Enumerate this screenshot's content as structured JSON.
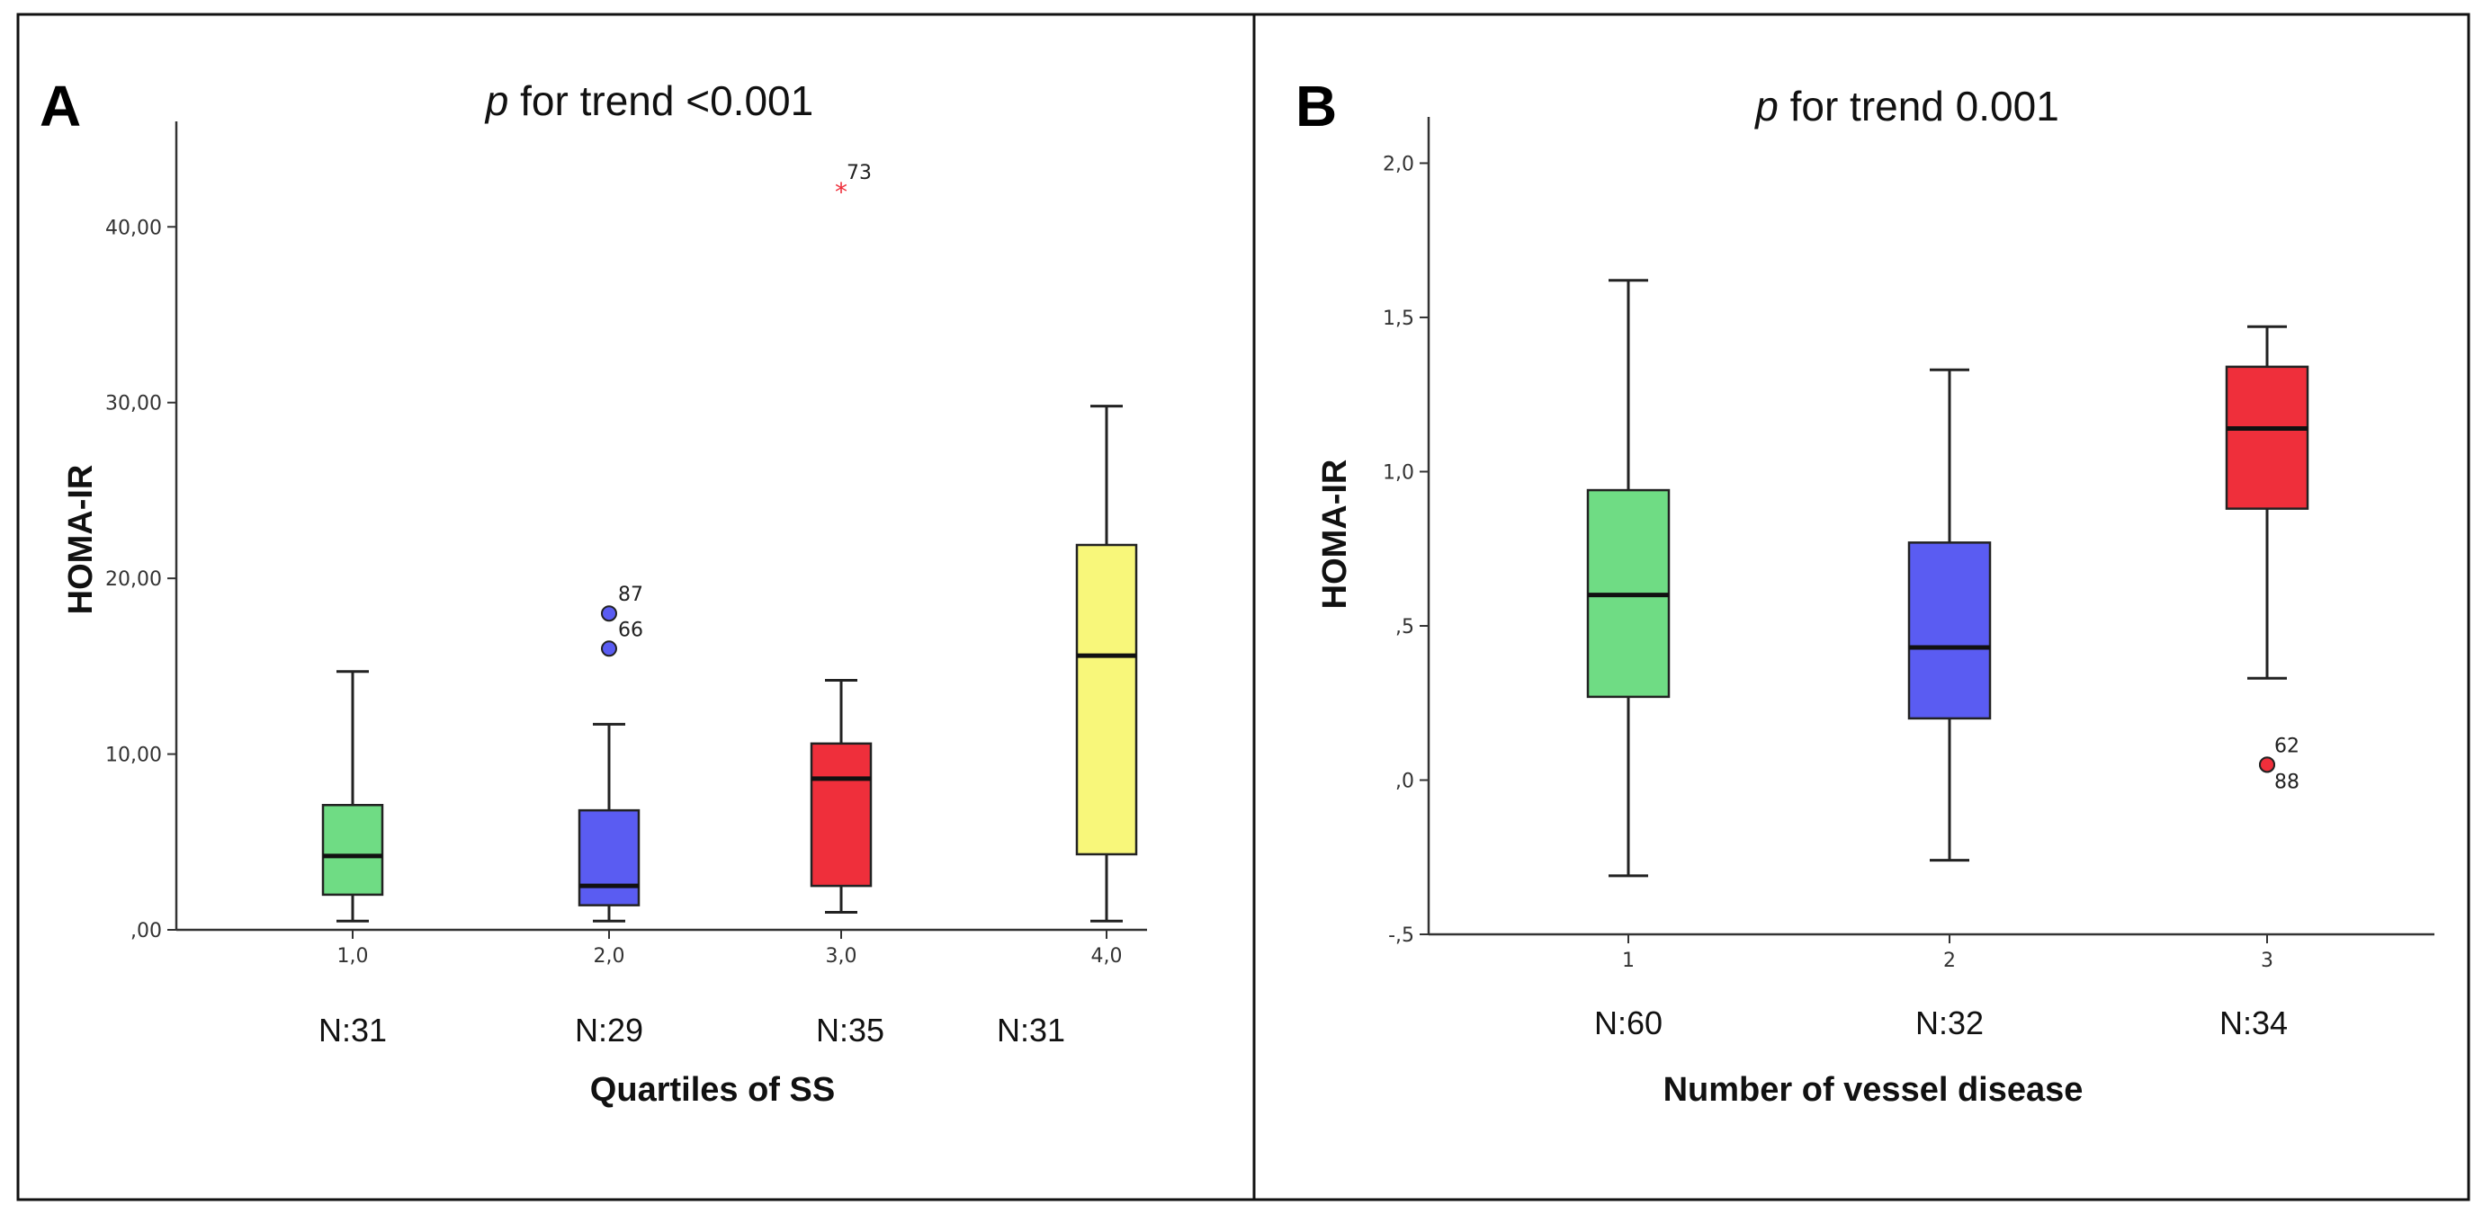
{
  "panels": [
    {
      "letter": "A",
      "title_italic": "p",
      "title_rest": " for trend <0.001",
      "xlabel": "Quartiles of SS",
      "ylabel": "HOMA-IR",
      "n_labels": [
        "N:31",
        "N:29",
        "N:35",
        "N:31"
      ]
    },
    {
      "letter": "B",
      "title_italic": "p",
      "title_rest": " for trend 0.001",
      "xlabel": "Number of vessel disease",
      "ylabel": "HOMA-IR",
      "n_labels": [
        "N:60",
        "N:32",
        "N:34"
      ]
    }
  ],
  "chart_data": [
    {
      "type": "box",
      "title": "p for trend <0.001",
      "xlabel": "Quartiles of SS",
      "ylabel": "HOMA-IR",
      "ylim": [
        0,
        46
      ],
      "yticks": [
        0,
        10,
        20,
        30,
        40
      ],
      "ytick_labels": [
        ",00",
        "10,00",
        "20,00",
        "30,00",
        "40,00"
      ],
      "categories": [
        "1,0",
        "2,0",
        "3,0",
        "4,0"
      ],
      "boxes": [
        {
          "category": "1,0",
          "n": "N:31",
          "color": "#6fdc84",
          "whisker_low": 0.5,
          "q1": 2.0,
          "median": 4.2,
          "q3": 7.1,
          "whisker_high": 14.7,
          "outliers": []
        },
        {
          "category": "2,0",
          "n": "N:29",
          "color": "#5a5cf2",
          "whisker_low": 0.5,
          "q1": 1.4,
          "median": 2.5,
          "q3": 6.8,
          "whisker_high": 11.7,
          "outliers": [
            {
              "value": 18.0,
              "label": "87",
              "marker": "circle",
              "color": "#5a5cf2"
            },
            {
              "value": 16.0,
              "label": "66",
              "marker": "circle",
              "color": "#5a5cf2"
            }
          ]
        },
        {
          "category": "3,0",
          "n": "N:35",
          "color": "#ef2f3b",
          "whisker_low": 1.0,
          "q1": 2.5,
          "median": 8.6,
          "q3": 10.6,
          "whisker_high": 14.2,
          "outliers": [
            {
              "value": 42.0,
              "label": "73",
              "marker": "star",
              "color": "#ef2f3b"
            }
          ]
        },
        {
          "category": "4,0",
          "n": "N:31",
          "color": "#f8f77a",
          "whisker_low": 0.5,
          "q1": 4.3,
          "median": 15.6,
          "q3": 21.9,
          "whisker_high": 29.8,
          "outliers": []
        }
      ]
    },
    {
      "type": "box",
      "title": "p for trend 0.001",
      "xlabel": "Number of vessel disease",
      "ylabel": "HOMA-IR",
      "ylim": [
        -0.5,
        2.15
      ],
      "yticks": [
        -0.5,
        0,
        0.5,
        1.0,
        1.5,
        2.0
      ],
      "ytick_labels": [
        "-,5",
        ",0",
        ",5",
        "1,0",
        "1,5",
        "2,0"
      ],
      "categories": [
        "1",
        "2",
        "3"
      ],
      "boxes": [
        {
          "category": "1",
          "n": "N:60",
          "color": "#6fdc84",
          "whisker_low": -0.31,
          "q1": 0.27,
          "median": 0.6,
          "q3": 0.94,
          "whisker_high": 1.62,
          "outliers": []
        },
        {
          "category": "2",
          "n": "N:32",
          "color": "#5a5cf2",
          "whisker_low": -0.26,
          "q1": 0.2,
          "median": 0.43,
          "q3": 0.77,
          "whisker_high": 1.33,
          "outliers": []
        },
        {
          "category": "3",
          "n": "N:34",
          "color": "#ef2f3b",
          "whisker_low": 0.33,
          "q1": 0.88,
          "median": 1.14,
          "q3": 1.34,
          "whisker_high": 1.47,
          "outliers": [
            {
              "value": 0.05,
              "label": "62",
              "marker": "circle",
              "color": "#ef2f3b"
            },
            {
              "value": 0.05,
              "label": "88",
              "marker": "circle",
              "color": "#ef2f3b"
            }
          ]
        }
      ]
    }
  ]
}
